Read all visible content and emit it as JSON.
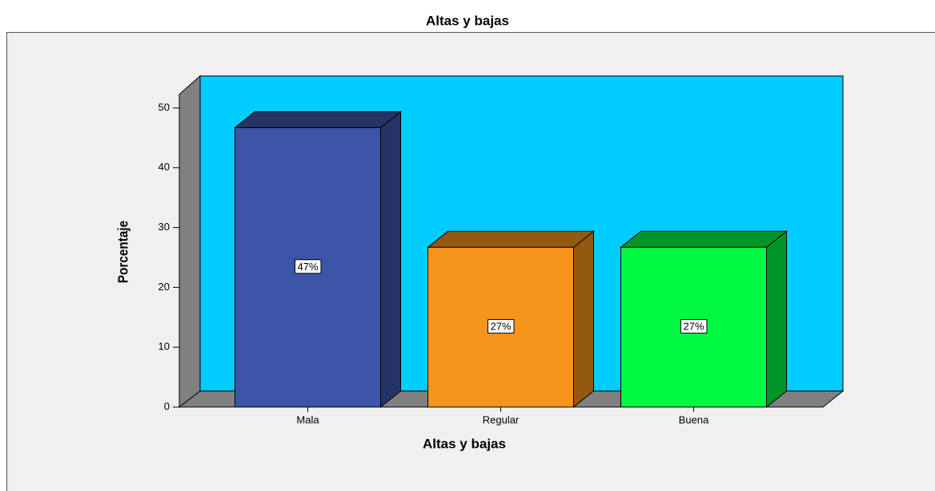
{
  "chart_data": {
    "type": "bar3d",
    "title": "Altas y bajas",
    "xlabel": "Altas y bajas",
    "ylabel": "Porcentaje",
    "categories": [
      "Mala",
      "Regular",
      "Buena"
    ],
    "values": [
      46.7,
      26.7,
      26.7
    ],
    "value_labels": [
      "47%",
      "27%",
      "27%"
    ],
    "colors": [
      "#3d55a8",
      "#f7941d",
      "#00f940"
    ],
    "ylim": [
      0,
      52
    ],
    "yticks": [
      0,
      10,
      20,
      30,
      40,
      50
    ]
  }
}
